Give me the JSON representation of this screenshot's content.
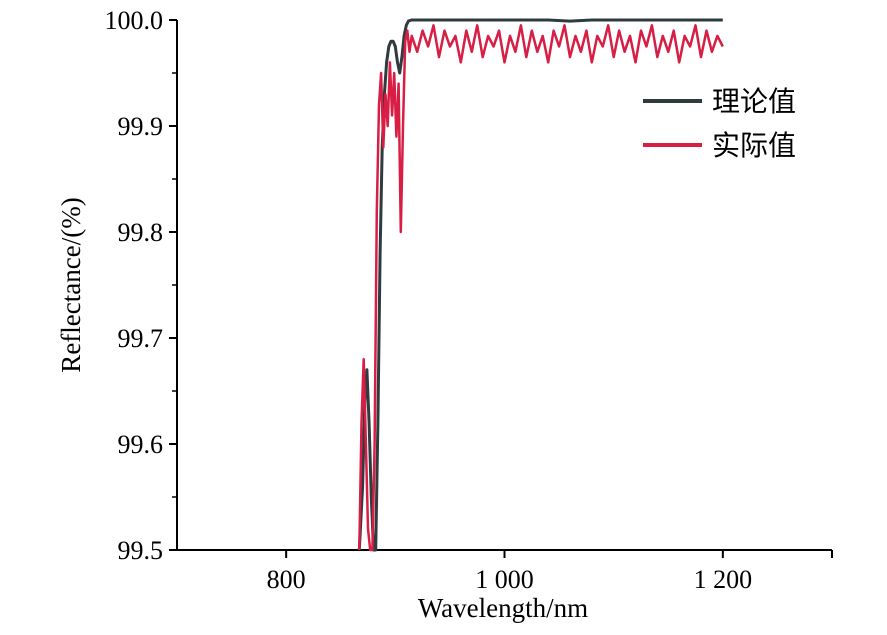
{
  "chart_data": {
    "type": "line",
    "title": "",
    "xlabel": "Wavelength/nm",
    "ylabel": "Reflectance/(%)",
    "xlim": [
      700,
      1300
    ],
    "ylim": [
      99.5,
      100.0
    ],
    "x_ticks": [
      800,
      1000,
      1200
    ],
    "x_tick_labels": [
      "800",
      "1 000",
      "1 200"
    ],
    "y_ticks": [
      99.5,
      99.6,
      99.7,
      99.8,
      99.9,
      100.0
    ],
    "y_tick_labels": [
      "99.5",
      "99.6",
      "99.7",
      "99.8",
      "99.9",
      "100.0"
    ],
    "grid": false,
    "legend_position": "top-right",
    "series": [
      {
        "name": "理论值",
        "color": "#2f3b3f",
        "x": [
          867,
          870,
          872,
          874,
          876,
          878,
          880,
          882,
          884,
          886,
          888,
          890,
          892,
          894,
          896,
          898,
          900,
          902,
          904,
          906,
          908,
          910,
          912,
          915,
          920,
          940,
          960,
          980,
          1000,
          1020,
          1040,
          1060,
          1080,
          1100,
          1120,
          1140,
          1160,
          1180,
          1200
        ],
        "y": [
          99.5,
          99.56,
          99.64,
          99.67,
          99.62,
          99.55,
          99.5,
          99.5,
          99.62,
          99.78,
          99.88,
          99.93,
          99.96,
          99.975,
          99.98,
          99.98,
          99.975,
          99.96,
          99.95,
          99.965,
          99.985,
          99.995,
          99.999,
          100.0,
          100.0,
          100.0,
          100.0,
          100.0,
          100.0,
          100.0,
          100.0,
          99.999,
          100.0,
          100.0,
          100.0,
          100.0,
          100.0,
          100.0,
          100.0
        ]
      },
      {
        "name": "实际值",
        "color": "#d81e44",
        "x": [
          867,
          869,
          871,
          873,
          875,
          877,
          879,
          881,
          883,
          885,
          887,
          889,
          891,
          893,
          895,
          897,
          899,
          901,
          903,
          905,
          907,
          909,
          911,
          913,
          915,
          920,
          925,
          930,
          935,
          940,
          945,
          950,
          955,
          960,
          965,
          970,
          975,
          980,
          985,
          990,
          995,
          1000,
          1005,
          1010,
          1015,
          1020,
          1025,
          1030,
          1035,
          1040,
          1045,
          1050,
          1055,
          1060,
          1065,
          1070,
          1075,
          1080,
          1085,
          1090,
          1095,
          1100,
          1105,
          1110,
          1115,
          1120,
          1125,
          1130,
          1135,
          1140,
          1145,
          1150,
          1155,
          1160,
          1165,
          1170,
          1175,
          1180,
          1185,
          1190,
          1195,
          1200
        ],
        "y": [
          99.5,
          99.62,
          99.68,
          99.6,
          99.52,
          99.5,
          99.5,
          99.6,
          99.82,
          99.92,
          99.95,
          99.88,
          99.93,
          99.9,
          99.96,
          99.91,
          99.95,
          99.89,
          99.94,
          99.8,
          99.9,
          99.98,
          99.99,
          99.97,
          99.985,
          99.97,
          99.99,
          99.975,
          99.995,
          99.965,
          99.99,
          99.975,
          99.985,
          99.96,
          99.99,
          99.97,
          99.995,
          99.965,
          99.985,
          99.975,
          99.99,
          99.96,
          99.985,
          99.97,
          99.995,
          99.965,
          99.99,
          99.97,
          99.985,
          99.96,
          99.99,
          99.975,
          99.995,
          99.965,
          99.985,
          99.97,
          99.99,
          99.96,
          99.985,
          99.975,
          99.995,
          99.965,
          99.99,
          99.97,
          99.985,
          99.96,
          99.99,
          99.975,
          99.995,
          99.965,
          99.985,
          99.97,
          99.99,
          99.96,
          99.985,
          99.975,
          99.995,
          99.965,
          99.99,
          99.97,
          99.985,
          99.975
        ]
      }
    ]
  }
}
